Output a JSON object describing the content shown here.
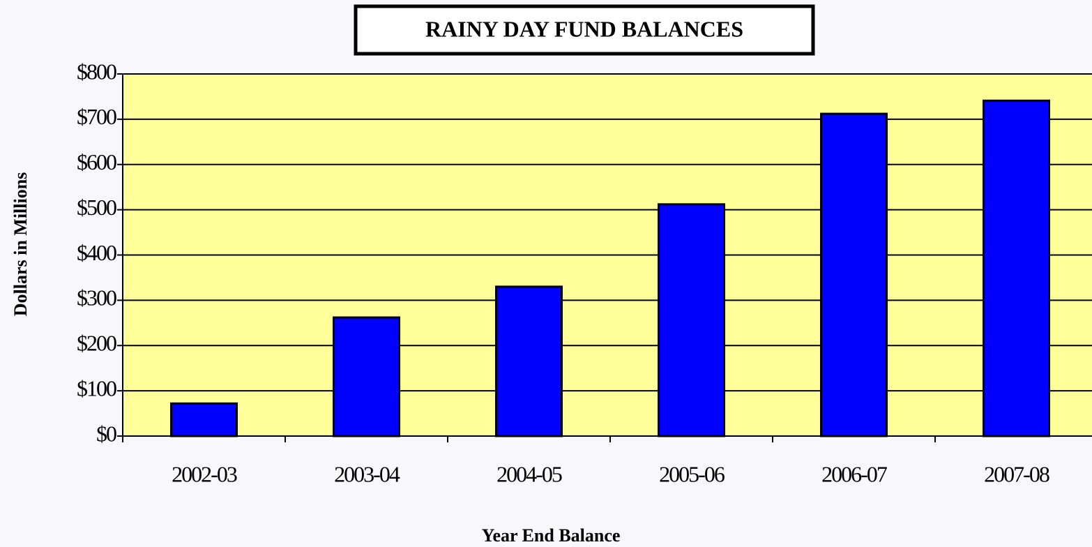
{
  "chart_data": {
    "type": "bar",
    "title": "RAINY DAY FUND BALANCES",
    "categories": [
      "2002-03",
      "2003-04",
      "2004-05",
      "2005-06",
      "2006-07",
      "2007-08"
    ],
    "values": [
      72,
      262,
      330,
      512,
      712,
      741
    ],
    "color": "#0000ff",
    "xlabel": "Year End Balance",
    "ylabel": "Dollars in Millions",
    "ylim": [
      0,
      800
    ],
    "yticks": [
      {
        "value": 0,
        "label": "$0"
      },
      {
        "value": 100,
        "label": "$100"
      },
      {
        "value": 200,
        "label": "$200"
      },
      {
        "value": 300,
        "label": "$300"
      },
      {
        "value": 400,
        "label": "$400"
      },
      {
        "value": 500,
        "label": "$500"
      },
      {
        "value": 600,
        "label": "$600"
      },
      {
        "value": 700,
        "label": "$700"
      },
      {
        "value": 800,
        "label": "$800"
      }
    ],
    "grid": true
  }
}
